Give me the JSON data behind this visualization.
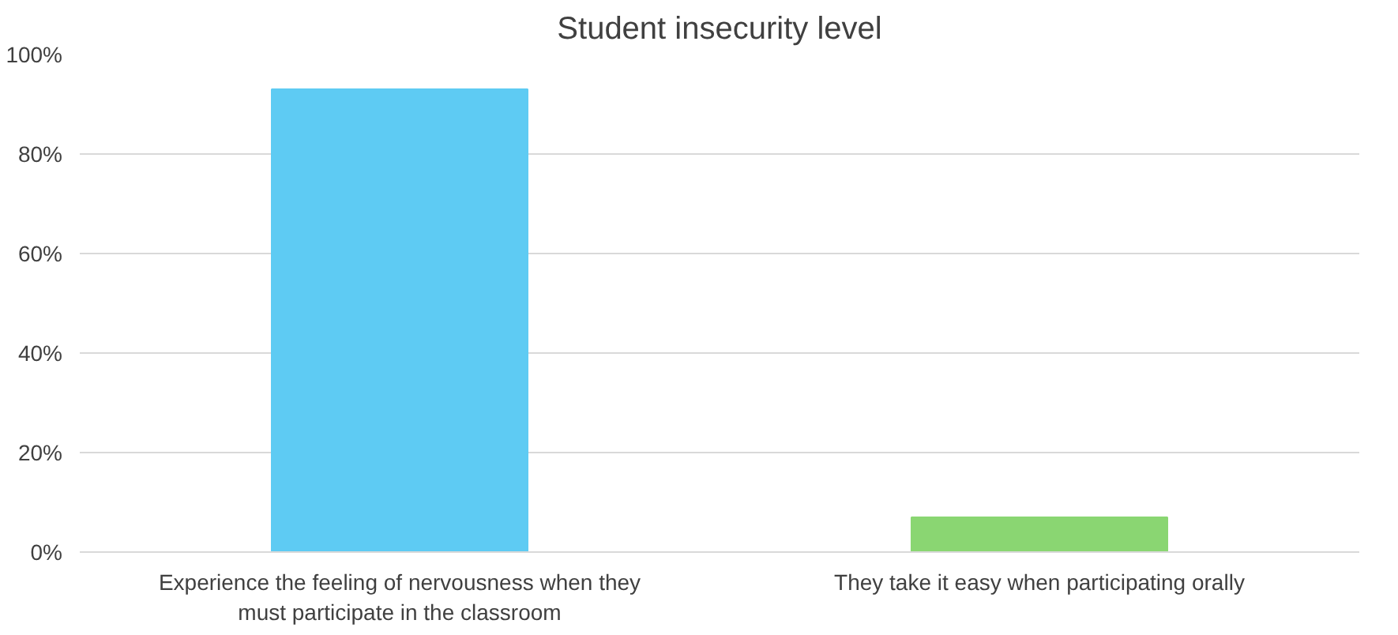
{
  "chart_data": {
    "type": "bar",
    "title": "Student insecurity level",
    "categories": [
      "Experience the feeling of nervousness when they must participate in the classroom",
      "They take it easy when participating orally"
    ],
    "values": [
      93,
      7
    ],
    "colors": [
      "#5ecbf3",
      "#8ad672"
    ],
    "ylim": [
      0,
      100
    ],
    "yticks": [
      {
        "value": 0,
        "label": "0%"
      },
      {
        "value": 20,
        "label": "20%"
      },
      {
        "value": 40,
        "label": "40%"
      },
      {
        "value": 60,
        "label": "60%"
      },
      {
        "value": 80,
        "label": "80%"
      },
      {
        "value": 100,
        "label": "100%"
      }
    ],
    "grid": "y"
  }
}
